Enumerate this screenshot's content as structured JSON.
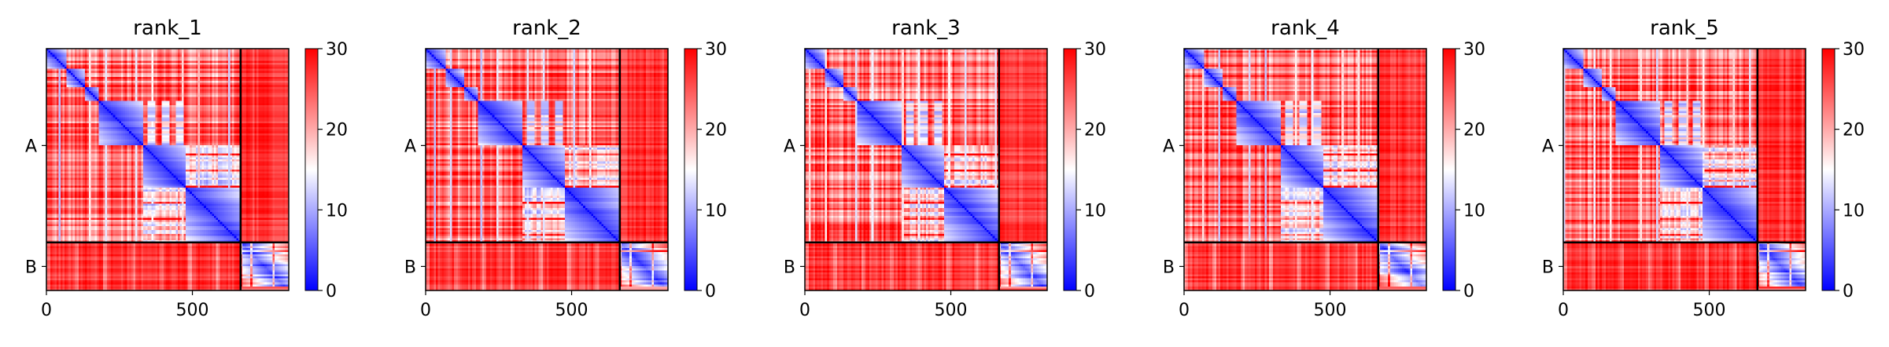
{
  "chart_data": [
    {
      "type": "heatmap",
      "title": "rank_1",
      "xlabel": "",
      "ylabel": "",
      "x_ticks": [
        0,
        500
      ],
      "xlim": [
        0,
        830
      ],
      "chain_labels": [
        "A",
        "B"
      ],
      "chain_lengths": [
        665,
        165
      ],
      "colorbar": {
        "ticks": [
          0,
          10,
          20,
          30
        ],
        "vmin": 0,
        "vmax": 30
      },
      "seed": 11
    },
    {
      "type": "heatmap",
      "title": "rank_2",
      "xlabel": "",
      "ylabel": "",
      "x_ticks": [
        0,
        500
      ],
      "xlim": [
        0,
        830
      ],
      "chain_labels": [
        "A",
        "B"
      ],
      "chain_lengths": [
        665,
        165
      ],
      "colorbar": {
        "ticks": [
          0,
          10,
          20,
          30
        ],
        "vmin": 0,
        "vmax": 30
      },
      "seed": 23
    },
    {
      "type": "heatmap",
      "title": "rank_3",
      "xlabel": "",
      "ylabel": "",
      "x_ticks": [
        0,
        500
      ],
      "xlim": [
        0,
        830
      ],
      "chain_labels": [
        "A",
        "B"
      ],
      "chain_lengths": [
        665,
        165
      ],
      "colorbar": {
        "ticks": [
          0,
          10,
          20,
          30
        ],
        "vmin": 0,
        "vmax": 30
      },
      "seed": 37
    },
    {
      "type": "heatmap",
      "title": "rank_4",
      "xlabel": "",
      "ylabel": "",
      "x_ticks": [
        0,
        500
      ],
      "xlim": [
        0,
        830
      ],
      "chain_labels": [
        "A",
        "B"
      ],
      "chain_lengths": [
        665,
        165
      ],
      "colorbar": {
        "ticks": [
          0,
          10,
          20,
          30
        ],
        "vmin": 0,
        "vmax": 30
      },
      "seed": 41
    },
    {
      "type": "heatmap",
      "title": "rank_5",
      "xlabel": "",
      "ylabel": "",
      "x_ticks": [
        0,
        500
      ],
      "xlim": [
        0,
        830
      ],
      "chain_labels": [
        "A",
        "B"
      ],
      "chain_lengths": [
        665,
        165
      ],
      "colorbar": {
        "ticks": [
          0,
          10,
          20,
          30
        ],
        "vmin": 0,
        "vmax": 30
      },
      "seed": 53
    }
  ],
  "colors": {
    "low": "#0000ff",
    "mid": "#ffffff",
    "high": "#ff0000",
    "chain_divider": "#000000"
  }
}
